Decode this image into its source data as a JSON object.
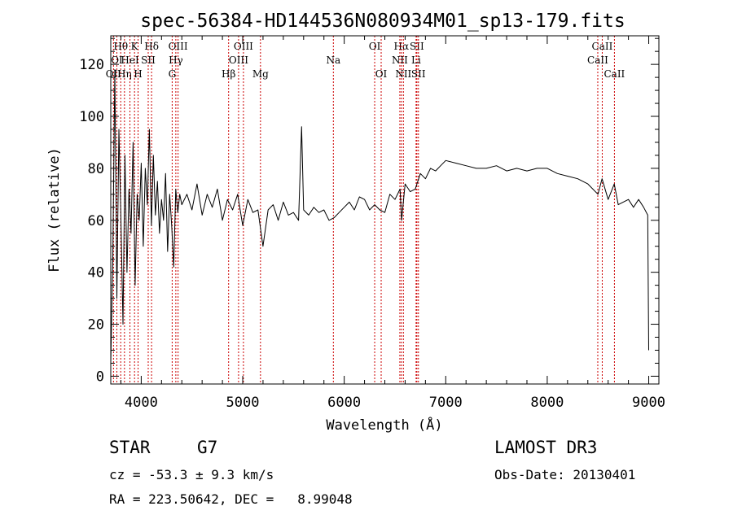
{
  "chart_data": {
    "type": "line",
    "title": "spec-56384-HD144536N080934M01_sp13-179.fits",
    "xlabel": "Wavelength (Å)",
    "ylabel": "Flux (relative)",
    "xlim": [
      3700,
      9100
    ],
    "ylim": [
      -3,
      131
    ],
    "x_ticks": [
      4000,
      5000,
      6000,
      7000,
      8000,
      9000
    ],
    "y_ticks": [
      0,
      20,
      40,
      60,
      80,
      100,
      120
    ],
    "grid": false,
    "series": [
      {
        "x": [
          3700,
          3720,
          3740,
          3760,
          3780,
          3800,
          3820,
          3840,
          3860,
          3880,
          3900,
          3920,
          3940,
          3960,
          3980,
          4000,
          4020,
          4040,
          4060,
          4080,
          4100,
          4120,
          4140,
          4160,
          4180,
          4200,
          4220,
          4240,
          4260,
          4280,
          4300,
          4320,
          4340,
          4360,
          4380,
          4400,
          4450,
          4500,
          4550,
          4600,
          4650,
          4700,
          4750,
          4800,
          4850,
          4900,
          4950,
          5000,
          5050,
          5100,
          5150,
          5200,
          5250,
          5300,
          5350,
          5400,
          5450,
          5500,
          5550,
          5580,
          5600,
          5650,
          5700,
          5750,
          5800,
          5850,
          5900,
          5950,
          6000,
          6050,
          6100,
          6150,
          6200,
          6250,
          6300,
          6350,
          6400,
          6450,
          6500,
          6550,
          6565,
          6600,
          6650,
          6700,
          6750,
          6800,
          6850,
          6900,
          6950,
          7000,
          7100,
          7200,
          7300,
          7400,
          7500,
          7600,
          7700,
          7800,
          7900,
          8000,
          8100,
          8200,
          8300,
          8400,
          8500,
          8540,
          8600,
          8660,
          8700,
          8800,
          8850,
          8900,
          8950,
          8990,
          9000
        ],
        "y": [
          5,
          45,
          118,
          30,
          95,
          60,
          20,
          85,
          40,
          72,
          55,
          90,
          35,
          70,
          60,
          82,
          50,
          80,
          66,
          95,
          58,
          85,
          62,
          75,
          55,
          68,
          60,
          78,
          48,
          70,
          58,
          42,
          72,
          63,
          70,
          66,
          70,
          64,
          74,
          62,
          70,
          65,
          72,
          60,
          68,
          64,
          70,
          58,
          68,
          63,
          64,
          50,
          64,
          66,
          60,
          67,
          62,
          63,
          60,
          96,
          64,
          62,
          65,
          63,
          64,
          60,
          61,
          63,
          65,
          67,
          64,
          69,
          68,
          64,
          66,
          64,
          63,
          70,
          68,
          72,
          60,
          74,
          71,
          72,
          78,
          76,
          80,
          79,
          81,
          83,
          82,
          81,
          80,
          80,
          81,
          79,
          80,
          79,
          80,
          80,
          78,
          77,
          76,
          74,
          70,
          76,
          68,
          74,
          66,
          68,
          65,
          68,
          65,
          62,
          10
        ]
      }
    ],
    "line_markers": [
      {
        "label": "Hθ",
        "x": 3798,
        "row": 1
      },
      {
        "label": "OII",
        "x": 3727,
        "row": 3
      },
      {
        "label": "OI",
        "x": 3760,
        "row": 2
      },
      {
        "label": "Hη",
        "x": 3835,
        "row": 3
      },
      {
        "label": "K",
        "x": 3934,
        "row": 1
      },
      {
        "label": "HeI",
        "x": 3889,
        "row": 2
      },
      {
        "label": "H",
        "x": 3969,
        "row": 3
      },
      {
        "label": "SII",
        "x": 4069,
        "row": 2
      },
      {
        "label": "Hδ",
        "x": 4102,
        "row": 1
      },
      {
        "label": "OIII",
        "x": 4363,
        "row": 1
      },
      {
        "label": "Hγ",
        "x": 4341,
        "row": 2
      },
      {
        "label": "G",
        "x": 4305,
        "row": 3
      },
      {
        "label": "OIII",
        "x": 5007,
        "row": 1
      },
      {
        "label": "OIII",
        "x": 4959,
        "row": 2
      },
      {
        "label": "Hβ",
        "x": 4861,
        "row": 3
      },
      {
        "label": "Mg",
        "x": 5175,
        "row": 3
      },
      {
        "label": "Na",
        "x": 5893,
        "row": 2
      },
      {
        "label": "OI",
        "x": 6300,
        "row": 1
      },
      {
        "label": "OI",
        "x": 6364,
        "row": 3
      },
      {
        "label": "Hα",
        "x": 6563,
        "row": 1
      },
      {
        "label": "NII",
        "x": 6548,
        "row": 2
      },
      {
        "label": "NII",
        "x": 6583,
        "row": 3
      },
      {
        "label": "SII",
        "x": 6716,
        "row": 1
      },
      {
        "label": "Li",
        "x": 6708,
        "row": 2
      },
      {
        "label": "SII",
        "x": 6731,
        "row": 3
      },
      {
        "label": "CaII",
        "x": 8542,
        "row": 1
      },
      {
        "label": "CaII",
        "x": 8498,
        "row": 2
      },
      {
        "label": "CaII",
        "x": 8662,
        "row": 3
      }
    ],
    "line_color": "#000000",
    "marker_color": "#cc0000"
  },
  "info": {
    "class_label": "STAR",
    "subclass": "G7",
    "survey": "LAMOST DR3",
    "cz": "cz = -53.3 ± 9.3 km/s",
    "obs_date": "Obs-Date: 20130401",
    "coords": "RA = 223.50642, DEC =   8.99048"
  }
}
